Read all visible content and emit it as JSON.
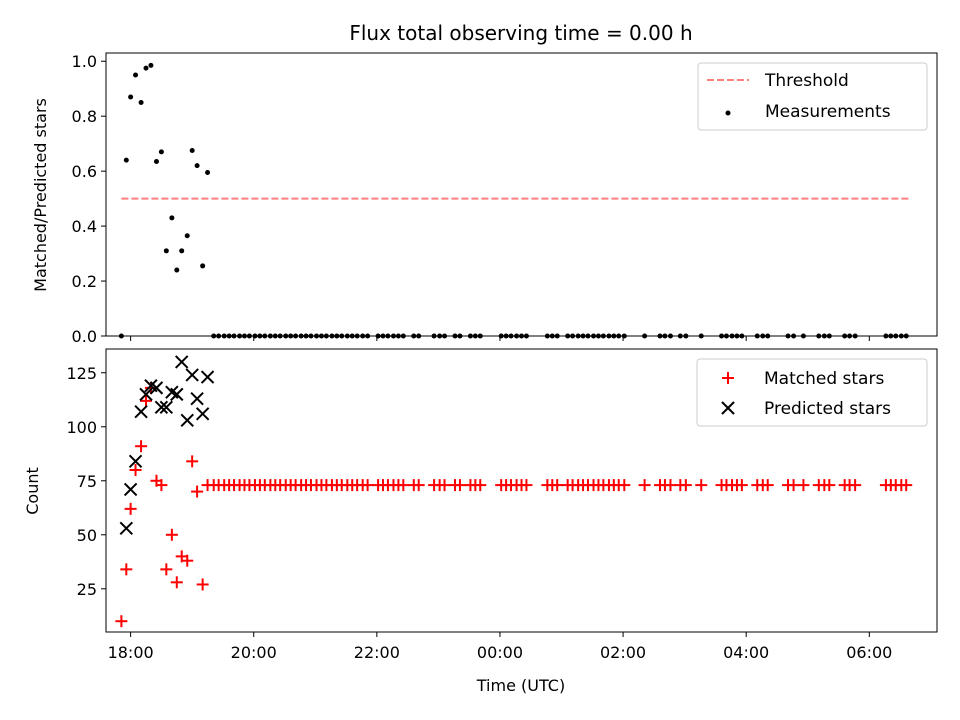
{
  "chart_data": [
    {
      "type": "scatter",
      "title": "Flux total observing time = 0.00 h",
      "xlabel": "",
      "ylabel": "Matched/Predicted stars",
      "xlim": [
        17.6,
        31.1
      ],
      "ylim": [
        0,
        1.03
      ],
      "yticks": [
        0.0,
        0.2,
        0.4,
        0.6,
        0.8,
        1.0
      ],
      "ytick_labels": [
        "0.0",
        "0.2",
        "0.4",
        "0.6",
        "0.8",
        "1.0"
      ],
      "legend_position": "top-right",
      "threshold": {
        "name": "Threshold",
        "value": 0.5,
        "x_range": [
          17.85,
          30.65
        ],
        "color": "#ff7f7f",
        "style": "dashed"
      },
      "series": [
        {
          "name": "Measurements",
          "marker": "dot",
          "color": "#000000",
          "points": [
            [
              17.85,
              0.0
            ],
            [
              17.93,
              0.64
            ],
            [
              18.0,
              0.87
            ],
            [
              18.08,
              0.95
            ],
            [
              18.17,
              0.85
            ],
            [
              18.25,
              0.975
            ],
            [
              18.33,
              0.985
            ],
            [
              18.42,
              0.635
            ],
            [
              18.5,
              0.67
            ],
            [
              18.58,
              0.31
            ],
            [
              18.67,
              0.43
            ],
            [
              18.75,
              0.24
            ],
            [
              18.83,
              0.31
            ],
            [
              18.92,
              0.365
            ],
            [
              19.0,
              0.675
            ],
            [
              19.08,
              0.62
            ],
            [
              19.17,
              0.255
            ],
            [
              19.25,
              0.595
            ],
            [
              19.35,
              0.0
            ],
            [
              19.43,
              0.0
            ],
            [
              19.52,
              0.0
            ],
            [
              19.6,
              0.0
            ],
            [
              19.68,
              0.0
            ],
            [
              19.77,
              0.0
            ],
            [
              19.85,
              0.0
            ],
            [
              19.93,
              0.0
            ],
            [
              20.02,
              0.0
            ],
            [
              20.1,
              0.0
            ],
            [
              20.18,
              0.0
            ],
            [
              20.27,
              0.0
            ],
            [
              20.35,
              0.0
            ],
            [
              20.43,
              0.0
            ],
            [
              20.52,
              0.0
            ],
            [
              20.6,
              0.0
            ],
            [
              20.68,
              0.0
            ],
            [
              20.77,
              0.0
            ],
            [
              20.85,
              0.0
            ],
            [
              20.93,
              0.0
            ],
            [
              21.02,
              0.0
            ],
            [
              21.1,
              0.0
            ],
            [
              21.18,
              0.0
            ],
            [
              21.27,
              0.0
            ],
            [
              21.35,
              0.0
            ],
            [
              21.43,
              0.0
            ],
            [
              21.52,
              0.0
            ],
            [
              21.6,
              0.0
            ],
            [
              21.68,
              0.0
            ],
            [
              21.77,
              0.0
            ],
            [
              21.85,
              0.0
            ],
            [
              22.02,
              0.0
            ],
            [
              22.1,
              0.0
            ],
            [
              22.18,
              0.0
            ],
            [
              22.27,
              0.0
            ],
            [
              22.35,
              0.0
            ],
            [
              22.43,
              0.0
            ],
            [
              22.6,
              0.0
            ],
            [
              22.68,
              0.0
            ],
            [
              22.93,
              0.0
            ],
            [
              23.02,
              0.0
            ],
            [
              23.1,
              0.0
            ],
            [
              23.27,
              0.0
            ],
            [
              23.35,
              0.0
            ],
            [
              23.52,
              0.0
            ],
            [
              23.6,
              0.0
            ],
            [
              23.68,
              0.0
            ],
            [
              24.02,
              0.0
            ],
            [
              24.1,
              0.0
            ],
            [
              24.18,
              0.0
            ],
            [
              24.27,
              0.0
            ],
            [
              24.35,
              0.0
            ],
            [
              24.43,
              0.0
            ],
            [
              24.77,
              0.0
            ],
            [
              24.85,
              0.0
            ],
            [
              24.93,
              0.0
            ],
            [
              25.1,
              0.0
            ],
            [
              25.18,
              0.0
            ],
            [
              25.27,
              0.0
            ],
            [
              25.35,
              0.0
            ],
            [
              25.43,
              0.0
            ],
            [
              25.52,
              0.0
            ],
            [
              25.6,
              0.0
            ],
            [
              25.68,
              0.0
            ],
            [
              25.77,
              0.0
            ],
            [
              25.85,
              0.0
            ],
            [
              25.93,
              0.0
            ],
            [
              26.02,
              0.0
            ],
            [
              26.35,
              0.0
            ],
            [
              26.6,
              0.0
            ],
            [
              26.68,
              0.0
            ],
            [
              26.77,
              0.0
            ],
            [
              26.93,
              0.0
            ],
            [
              27.02,
              0.0
            ],
            [
              27.27,
              0.0
            ],
            [
              27.6,
              0.0
            ],
            [
              27.68,
              0.0
            ],
            [
              27.77,
              0.0
            ],
            [
              27.85,
              0.0
            ],
            [
              27.93,
              0.0
            ],
            [
              28.18,
              0.0
            ],
            [
              28.27,
              0.0
            ],
            [
              28.35,
              0.0
            ],
            [
              28.68,
              0.0
            ],
            [
              28.77,
              0.0
            ],
            [
              28.93,
              0.0
            ],
            [
              29.18,
              0.0
            ],
            [
              29.27,
              0.0
            ],
            [
              29.35,
              0.0
            ],
            [
              29.6,
              0.0
            ],
            [
              29.68,
              0.0
            ],
            [
              29.77,
              0.0
            ],
            [
              30.27,
              0.0
            ],
            [
              30.35,
              0.0
            ],
            [
              30.43,
              0.0
            ],
            [
              30.52,
              0.0
            ],
            [
              30.6,
              0.0
            ]
          ]
        }
      ]
    },
    {
      "type": "scatter",
      "xlabel": "Time (UTC)",
      "ylabel": "Count",
      "xlim": [
        17.6,
        31.1
      ],
      "ylim": [
        5,
        136
      ],
      "xticks": [
        18,
        20,
        22,
        24,
        26,
        28,
        30
      ],
      "xtick_labels": [
        "18:00",
        "20:00",
        "22:00",
        "00:00",
        "02:00",
        "04:00",
        "06:00"
      ],
      "yticks": [
        25,
        50,
        75,
        100,
        125
      ],
      "ytick_labels": [
        "25",
        "50",
        "75",
        "100",
        "125"
      ],
      "legend_position": "top-right",
      "series": [
        {
          "name": "Matched stars",
          "marker": "plus",
          "color": "#ff0000",
          "points": [
            [
              17.85,
              10
            ],
            [
              17.93,
              34
            ],
            [
              18.0,
              62
            ],
            [
              18.08,
              80
            ],
            [
              18.17,
              91
            ],
            [
              18.25,
              112
            ],
            [
              18.33,
              118
            ],
            [
              18.42,
              75
            ],
            [
              18.5,
              73
            ],
            [
              18.58,
              34
            ],
            [
              18.67,
              50
            ],
            [
              18.75,
              28
            ],
            [
              18.83,
              40
            ],
            [
              18.92,
              38
            ],
            [
              19.0,
              84
            ],
            [
              19.08,
              70
            ],
            [
              19.17,
              27
            ],
            [
              19.25,
              73
            ],
            [
              19.35,
              73
            ],
            [
              19.43,
              73
            ],
            [
              19.52,
              73
            ],
            [
              19.6,
              73
            ],
            [
              19.68,
              73
            ],
            [
              19.77,
              73
            ],
            [
              19.85,
              73
            ],
            [
              19.93,
              73
            ],
            [
              20.02,
              73
            ],
            [
              20.1,
              73
            ],
            [
              20.18,
              73
            ],
            [
              20.27,
              73
            ],
            [
              20.35,
              73
            ],
            [
              20.43,
              73
            ],
            [
              20.52,
              73
            ],
            [
              20.6,
              73
            ],
            [
              20.68,
              73
            ],
            [
              20.77,
              73
            ],
            [
              20.85,
              73
            ],
            [
              20.93,
              73
            ],
            [
              21.02,
              73
            ],
            [
              21.1,
              73
            ],
            [
              21.18,
              73
            ],
            [
              21.27,
              73
            ],
            [
              21.35,
              73
            ],
            [
              21.43,
              73
            ],
            [
              21.52,
              73
            ],
            [
              21.6,
              73
            ],
            [
              21.68,
              73
            ],
            [
              21.77,
              73
            ],
            [
              21.85,
              73
            ],
            [
              22.02,
              73
            ],
            [
              22.1,
              73
            ],
            [
              22.18,
              73
            ],
            [
              22.27,
              73
            ],
            [
              22.35,
              73
            ],
            [
              22.43,
              73
            ],
            [
              22.6,
              73
            ],
            [
              22.68,
              73
            ],
            [
              22.93,
              73
            ],
            [
              23.02,
              73
            ],
            [
              23.1,
              73
            ],
            [
              23.27,
              73
            ],
            [
              23.35,
              73
            ],
            [
              23.52,
              73
            ],
            [
              23.6,
              73
            ],
            [
              23.68,
              73
            ],
            [
              24.02,
              73
            ],
            [
              24.1,
              73
            ],
            [
              24.18,
              73
            ],
            [
              24.27,
              73
            ],
            [
              24.35,
              73
            ],
            [
              24.43,
              73
            ],
            [
              24.77,
              73
            ],
            [
              24.85,
              73
            ],
            [
              24.93,
              73
            ],
            [
              25.1,
              73
            ],
            [
              25.18,
              73
            ],
            [
              25.27,
              73
            ],
            [
              25.35,
              73
            ],
            [
              25.43,
              73
            ],
            [
              25.52,
              73
            ],
            [
              25.6,
              73
            ],
            [
              25.68,
              73
            ],
            [
              25.77,
              73
            ],
            [
              25.85,
              73
            ],
            [
              25.93,
              73
            ],
            [
              26.02,
              73
            ],
            [
              26.35,
              73
            ],
            [
              26.6,
              73
            ],
            [
              26.68,
              73
            ],
            [
              26.77,
              73
            ],
            [
              26.93,
              73
            ],
            [
              27.02,
              73
            ],
            [
              27.27,
              73
            ],
            [
              27.6,
              73
            ],
            [
              27.68,
              73
            ],
            [
              27.77,
              73
            ],
            [
              27.85,
              73
            ],
            [
              27.93,
              73
            ],
            [
              28.18,
              73
            ],
            [
              28.27,
              73
            ],
            [
              28.35,
              73
            ],
            [
              28.68,
              73
            ],
            [
              28.77,
              73
            ],
            [
              28.93,
              73
            ],
            [
              29.18,
              73
            ],
            [
              29.27,
              73
            ],
            [
              29.35,
              73
            ],
            [
              29.6,
              73
            ],
            [
              29.68,
              73
            ],
            [
              29.77,
              73
            ],
            [
              30.27,
              73
            ],
            [
              30.35,
              73
            ],
            [
              30.43,
              73
            ],
            [
              30.52,
              73
            ],
            [
              30.6,
              73
            ]
          ]
        },
        {
          "name": "Predicted stars",
          "marker": "x",
          "color": "#000000",
          "points": [
            [
              17.93,
              53
            ],
            [
              18.0,
              71
            ],
            [
              18.08,
              84
            ],
            [
              18.17,
              107
            ],
            [
              18.25,
              115
            ],
            [
              18.33,
              119
            ],
            [
              18.42,
              118
            ],
            [
              18.5,
              109
            ],
            [
              18.58,
              109
            ],
            [
              18.67,
              116
            ],
            [
              18.75,
              115
            ],
            [
              18.83,
              130
            ],
            [
              18.92,
              103
            ],
            [
              19.0,
              124
            ],
            [
              19.08,
              113
            ],
            [
              19.17,
              106
            ],
            [
              19.25,
              123
            ]
          ]
        }
      ]
    }
  ]
}
